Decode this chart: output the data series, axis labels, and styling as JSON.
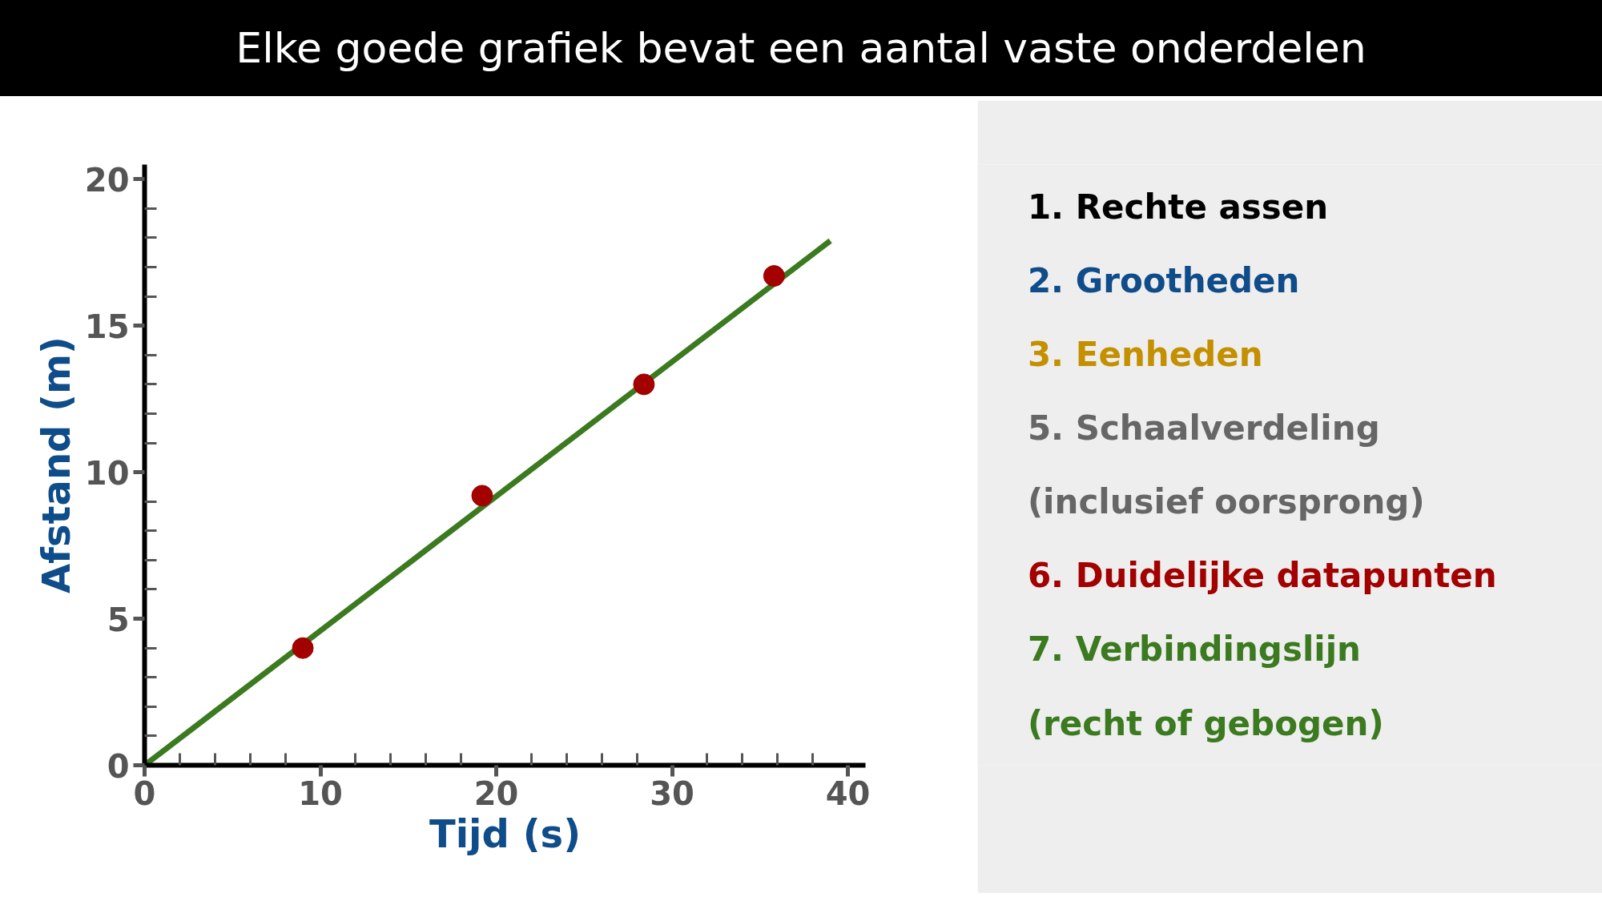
{
  "chart_data": [
    {
      "type": "scatter",
      "title": "Elke goede grafiek bevat een aantal vaste onderdelen",
      "xlabel": "Tijd (s)",
      "ylabel": "Afstand (m)",
      "x": [
        9.0,
        19.2,
        28.4,
        35.8
      ],
      "series": [
        {
          "type": "line",
          "color": "#3b7a1f",
          "x": [
            0,
            39
          ],
          "values": [
            0,
            17.9
          ],
          "marker": "none"
        },
        {
          "type": "scatter",
          "color": "#a30000",
          "values": [
            4.0,
            9.2,
            13.0,
            16.7
          ],
          "marker": "circle"
        }
      ],
      "xlim": [
        0,
        41
      ],
      "ylim": [
        0,
        20.5
      ],
      "xticks": [
        0,
        10,
        20,
        30,
        40
      ],
      "yticks": [
        0,
        5,
        10,
        15,
        20
      ],
      "grid": false,
      "line_style": "solid"
    },
    {
      "type": "other",
      "annotations": [
        "1.   Rechte assen",
        "2.   Grootheden",
        "3.   Eenheden",
        "5.   Schaalverdeling",
        "      (inclusief oorsprong)",
        "6.   Duidelijke datapunten",
        "7.   Verbindingslijn",
        "      (recht of gebogen)"
      ],
      "colors": [
        "#000000",
        "#0f4c8a",
        "#c49000",
        "#666666",
        "#666666",
        "#a30000",
        "#3b7a1f",
        "#3b7a1f"
      ]
    }
  ]
}
